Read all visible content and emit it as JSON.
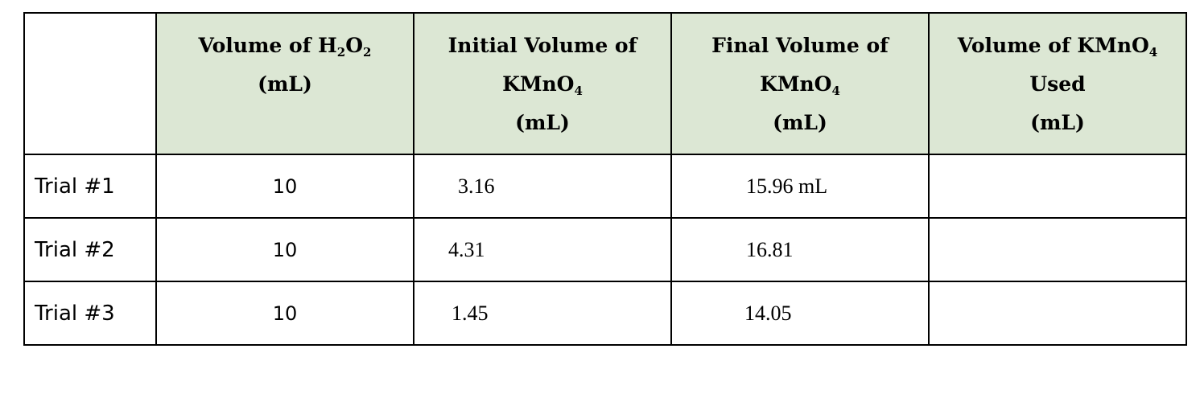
{
  "table": {
    "headers": [
      [
        [
          "Volume of H",
          "2",
          "O",
          "2"
        ],
        [
          "(mL)"
        ]
      ],
      [
        [
          "Initial Volume of"
        ],
        [
          "KMnO",
          "4"
        ],
        [
          "(mL)"
        ]
      ],
      [
        [
          "Final Volume of"
        ],
        [
          "KMnO",
          "4"
        ],
        [
          "(mL)"
        ]
      ],
      [
        [
          "Volume of KMnO",
          "4"
        ],
        [
          "Used"
        ],
        [
          "(mL)"
        ]
      ]
    ],
    "rows": [
      [
        "Trial #1",
        10,
        3.16,
        "15.96 mL"
      ],
      [
        "Trial #2",
        10,
        4.31,
        16.81
      ],
      [
        "Trial #3",
        10,
        1.45,
        14.05
      ]
    ]
  }
}
